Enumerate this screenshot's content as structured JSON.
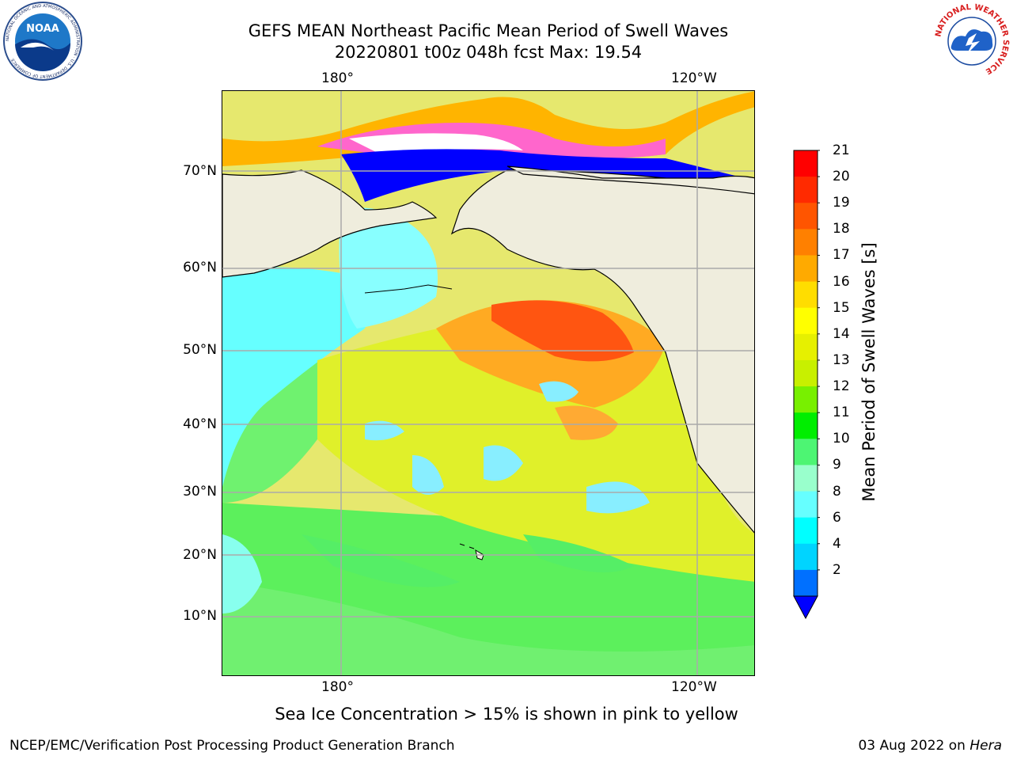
{
  "header": {
    "title_line1": "GEFS MEAN Northeast Pacific Mean Period of Swell Waves",
    "title_line2": "20220801 t00z 048h fcst   Max: 19.54"
  },
  "map": {
    "lon_labels": [
      "180°",
      "120°W"
    ],
    "lat_labels": [
      "70°N",
      "60°N",
      "50°N",
      "40°N",
      "30°N",
      "20°N",
      "10°N"
    ],
    "land_color": "#efeddd",
    "ocean_default_color": "#e6e86e"
  },
  "colorbar": {
    "label": "Mean Period of Swell Waves [s]",
    "ticks": [
      "21",
      "20",
      "19",
      "18",
      "17",
      "16",
      "15",
      "14",
      "13",
      "12",
      "11",
      "10",
      "9",
      "8",
      "6",
      "4",
      "2"
    ],
    "colors_top_to_bottom": [
      "#ff0000",
      "#ff2a00",
      "#ff5500",
      "#ff8000",
      "#ffaa00",
      "#ffdd00",
      "#ffff00",
      "#e6f000",
      "#c8f000",
      "#78f000",
      "#00ee00",
      "#4df573",
      "#99ffcc",
      "#66ffff",
      "#00ffff",
      "#00d4ff",
      "#0070ff"
    ],
    "extend_color": "#0000ff"
  },
  "caption": "Sea Ice Concentration > 15% is shown in pink to yellow",
  "footer": {
    "left": "NCEP/EMC/Verification Post Processing Product Generation Branch",
    "right_prefix": "03 Aug 2022 on ",
    "right_host": "Hera"
  },
  "logos": {
    "noaa": {
      "text": "NOAA",
      "ring_text": "NATIONAL OCEANIC AND ATMOSPHERIC ADMINISTRATION · U.S. DEPARTMENT OF COMMERCE"
    },
    "nws": {
      "ring_text": "NATIONAL WEATHER SERVICE"
    }
  }
}
